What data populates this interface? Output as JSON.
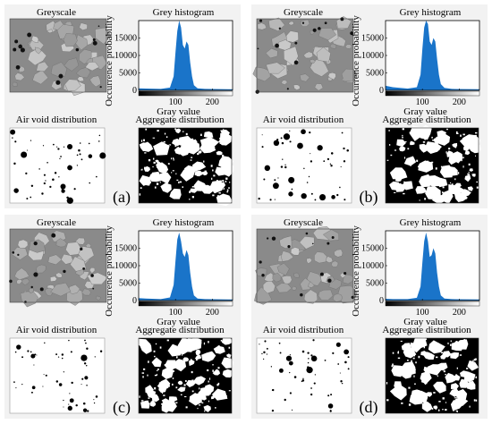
{
  "colors": {
    "panel_background": "#f2f2f2",
    "histogram_fill": "#1a74c9",
    "greyscale_base": "#8a8a8a"
  },
  "panels": [
    {
      "label": "(a)",
      "greyscale_title": "Greyscale",
      "histogram_title": "Grey histogram",
      "air_void_title": "Air void distribution",
      "aggregate_title": "Aggregate distribution"
    },
    {
      "label": "(b)",
      "greyscale_title": "Greyscale",
      "histogram_title": "Grey histogram",
      "air_void_title": "Air void distribution",
      "aggregate_title": "Aggregate distribution"
    },
    {
      "label": "(c)",
      "greyscale_title": "Greyscale",
      "histogram_title": "Grey histogram",
      "air_void_title": "Air void distribution",
      "aggregate_title": "Aggregate distribution"
    },
    {
      "label": "(d)",
      "greyscale_title": "Greyscale",
      "histogram_title": "Grey histogram",
      "air_void_title": "Air void distribution",
      "aggregate_title": "Aggregate distribution"
    }
  ],
  "chart_data": [
    {
      "type": "area",
      "title": "Grey histogram",
      "xlabel": "Gray value",
      "ylabel": "Occurrence probability",
      "xlim": [
        0,
        255
      ],
      "ylim": [
        0,
        20000
      ],
      "xticks": [
        "100",
        "200"
      ],
      "yticks": [
        "0",
        "5000",
        "10000",
        "15000"
      ],
      "x": [
        0,
        20,
        60,
        85,
        95,
        100,
        105,
        110,
        115,
        120,
        125,
        130,
        135,
        140,
        145,
        150,
        160,
        180,
        255
      ],
      "series": [
        {
          "values": [
            600,
            500,
            400,
            800,
            4000,
            11000,
            17000,
            20000,
            18000,
            13000,
            12000,
            14000,
            13000,
            8000,
            4000,
            1500,
            600,
            400,
            300
          ]
        }
      ]
    },
    {
      "type": "area",
      "title": "Grey histogram",
      "xlabel": "Gray value",
      "ylabel": "Occurrence probability",
      "xlim": [
        0,
        255
      ],
      "ylim": [
        0,
        20000
      ],
      "xticks": [
        "100",
        "200"
      ],
      "yticks": [
        "0",
        "5000",
        "10000",
        "15000"
      ],
      "x": [
        0,
        20,
        60,
        85,
        95,
        100,
        105,
        110,
        115,
        120,
        125,
        130,
        135,
        140,
        145,
        150,
        160,
        180,
        255
      ],
      "series": [
        {
          "values": [
            1300,
            900,
            500,
            900,
            4500,
            12000,
            18000,
            20000,
            19000,
            14000,
            13000,
            15000,
            14000,
            9000,
            4500,
            1800,
            700,
            400,
            300
          ]
        }
      ]
    },
    {
      "type": "area",
      "title": "Grey histogram",
      "xlabel": "Gray value",
      "ylabel": "Occurrence probability",
      "xlim": [
        0,
        255
      ],
      "ylim": [
        0,
        20000
      ],
      "xticks": [
        "100",
        "200"
      ],
      "yticks": [
        "0",
        "5000",
        "10000",
        "15000"
      ],
      "x": [
        0,
        20,
        60,
        85,
        95,
        100,
        105,
        110,
        115,
        120,
        125,
        130,
        135,
        140,
        145,
        150,
        160,
        180,
        255
      ],
      "series": [
        {
          "values": [
            700,
            600,
            400,
            900,
            4500,
            11500,
            17500,
            19500,
            17000,
            13500,
            12500,
            14500,
            13000,
            8000,
            4000,
            1500,
            600,
            400,
            300
          ]
        }
      ]
    },
    {
      "type": "area",
      "title": "Grey histogram",
      "xlabel": "Gray value",
      "ylabel": "Occurrence probability",
      "xlim": [
        0,
        255
      ],
      "ylim": [
        0,
        20000
      ],
      "xticks": [
        "100",
        "200"
      ],
      "yticks": [
        "0",
        "5000",
        "10000",
        "15000"
      ],
      "x": [
        0,
        20,
        60,
        85,
        95,
        100,
        105,
        110,
        115,
        120,
        125,
        130,
        135,
        140,
        145,
        150,
        160,
        180,
        255
      ],
      "series": [
        {
          "values": [
            500,
            400,
            400,
            800,
            4000,
            11000,
            17000,
            19500,
            17000,
            12500,
            13000,
            15000,
            13500,
            8000,
            4000,
            1500,
            600,
            400,
            300
          ]
        }
      ]
    }
  ]
}
